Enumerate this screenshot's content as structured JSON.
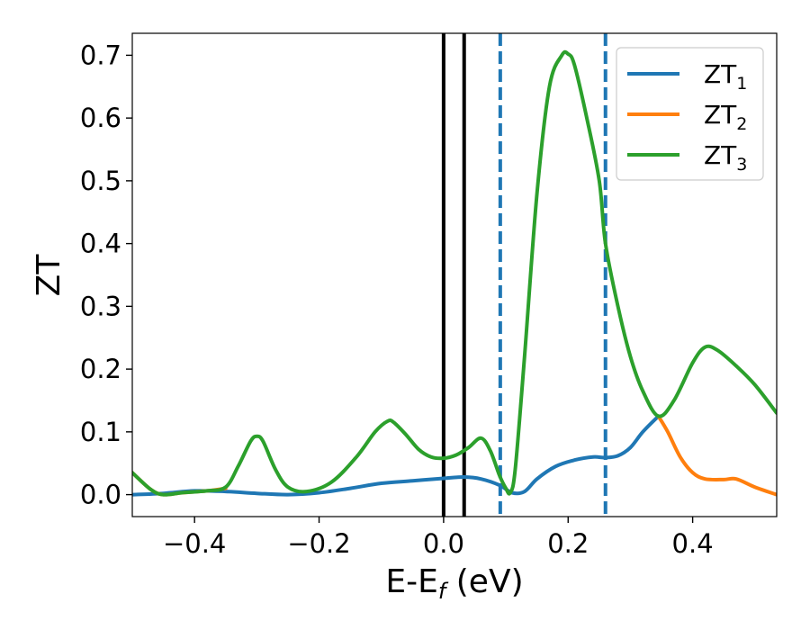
{
  "chart_data": {
    "type": "line",
    "xlabel": {
      "base": "E-E",
      "sub": "f",
      "unit": " (eV)"
    },
    "ylabel": "ZT",
    "xlim": [
      -0.5,
      0.535
    ],
    "ylim": [
      -0.035,
      0.735
    ],
    "x_ticks": [
      -0.4,
      -0.2,
      0.0,
      0.2,
      0.4
    ],
    "x_tick_labels": [
      "−0.4",
      "−0.2",
      "0.0",
      "0.2",
      "0.4"
    ],
    "y_ticks": [
      0.0,
      0.1,
      0.2,
      0.3,
      0.4,
      0.5,
      0.6,
      0.7
    ],
    "y_tick_labels": [
      "0.0",
      "0.1",
      "0.2",
      "0.3",
      "0.4",
      "0.5",
      "0.6",
      "0.7"
    ],
    "grid": false,
    "legend_position": "top-right",
    "vertical_lines": [
      {
        "x": 0.0,
        "style": "solid",
        "color": "#000000"
      },
      {
        "x": 0.033,
        "style": "solid",
        "color": "#000000"
      },
      {
        "x": 0.091,
        "style": "dashed",
        "color": "#1f77b4"
      },
      {
        "x": 0.26,
        "style": "dashed",
        "color": "#1f77b4"
      }
    ],
    "series": [
      {
        "name": {
          "base": "ZT",
          "sub": "1"
        },
        "color": "#1f77b4",
        "x": [
          -0.5,
          -0.45,
          -0.4,
          -0.35,
          -0.3,
          -0.25,
          -0.2,
          -0.15,
          -0.1,
          -0.05,
          0.0,
          0.033,
          0.06,
          0.09,
          0.11,
          0.13,
          0.15,
          0.18,
          0.21,
          0.24,
          0.26,
          0.28,
          0.3,
          0.32,
          0.345
        ],
        "y": [
          0.0,
          0.002,
          0.006,
          0.005,
          0.002,
          0.0,
          0.003,
          0.01,
          0.018,
          0.022,
          0.026,
          0.028,
          0.025,
          0.015,
          0.003,
          0.005,
          0.025,
          0.045,
          0.055,
          0.06,
          0.059,
          0.062,
          0.075,
          0.1,
          0.125
        ]
      },
      {
        "name": {
          "base": "ZT",
          "sub": "2"
        },
        "color": "#ff7f0e",
        "x": [
          -0.5,
          -0.47,
          -0.45,
          -0.42,
          -0.38,
          -0.35,
          0.345,
          0.36,
          0.38,
          0.4,
          0.42,
          0.45,
          0.47,
          0.5,
          0.535
        ],
        "y": [
          0.035,
          0.008,
          0.0,
          0.003,
          0.006,
          0.01,
          0.125,
          0.1,
          0.06,
          0.035,
          0.025,
          0.024,
          0.025,
          0.012,
          0.0
        ]
      },
      {
        "name": {
          "base": "ZT",
          "sub": "3"
        },
        "color": "#2ca02c",
        "x": [
          -0.5,
          -0.47,
          -0.45,
          -0.42,
          -0.38,
          -0.35,
          -0.33,
          -0.31,
          -0.3,
          -0.29,
          -0.27,
          -0.25,
          -0.22,
          -0.18,
          -0.14,
          -0.11,
          -0.09,
          -0.08,
          -0.06,
          -0.04,
          -0.02,
          0.0,
          0.02,
          0.04,
          0.06,
          0.075,
          0.09,
          0.1,
          0.107,
          0.115,
          0.13,
          0.15,
          0.17,
          0.19,
          0.2,
          0.21,
          0.23,
          0.25,
          0.26,
          0.28,
          0.3,
          0.32,
          0.345,
          0.37,
          0.4,
          0.42,
          0.44,
          0.47,
          0.5,
          0.535
        ],
        "y": [
          0.035,
          0.008,
          0.0,
          0.003,
          0.006,
          0.012,
          0.045,
          0.085,
          0.093,
          0.085,
          0.04,
          0.012,
          0.005,
          0.02,
          0.06,
          0.1,
          0.117,
          0.115,
          0.095,
          0.072,
          0.06,
          0.058,
          0.063,
          0.075,
          0.09,
          0.07,
          0.03,
          0.01,
          0.003,
          0.04,
          0.22,
          0.48,
          0.65,
          0.7,
          0.702,
          0.685,
          0.6,
          0.5,
          0.4,
          0.3,
          0.22,
          0.165,
          0.125,
          0.15,
          0.21,
          0.235,
          0.23,
          0.205,
          0.175,
          0.13
        ]
      }
    ]
  }
}
